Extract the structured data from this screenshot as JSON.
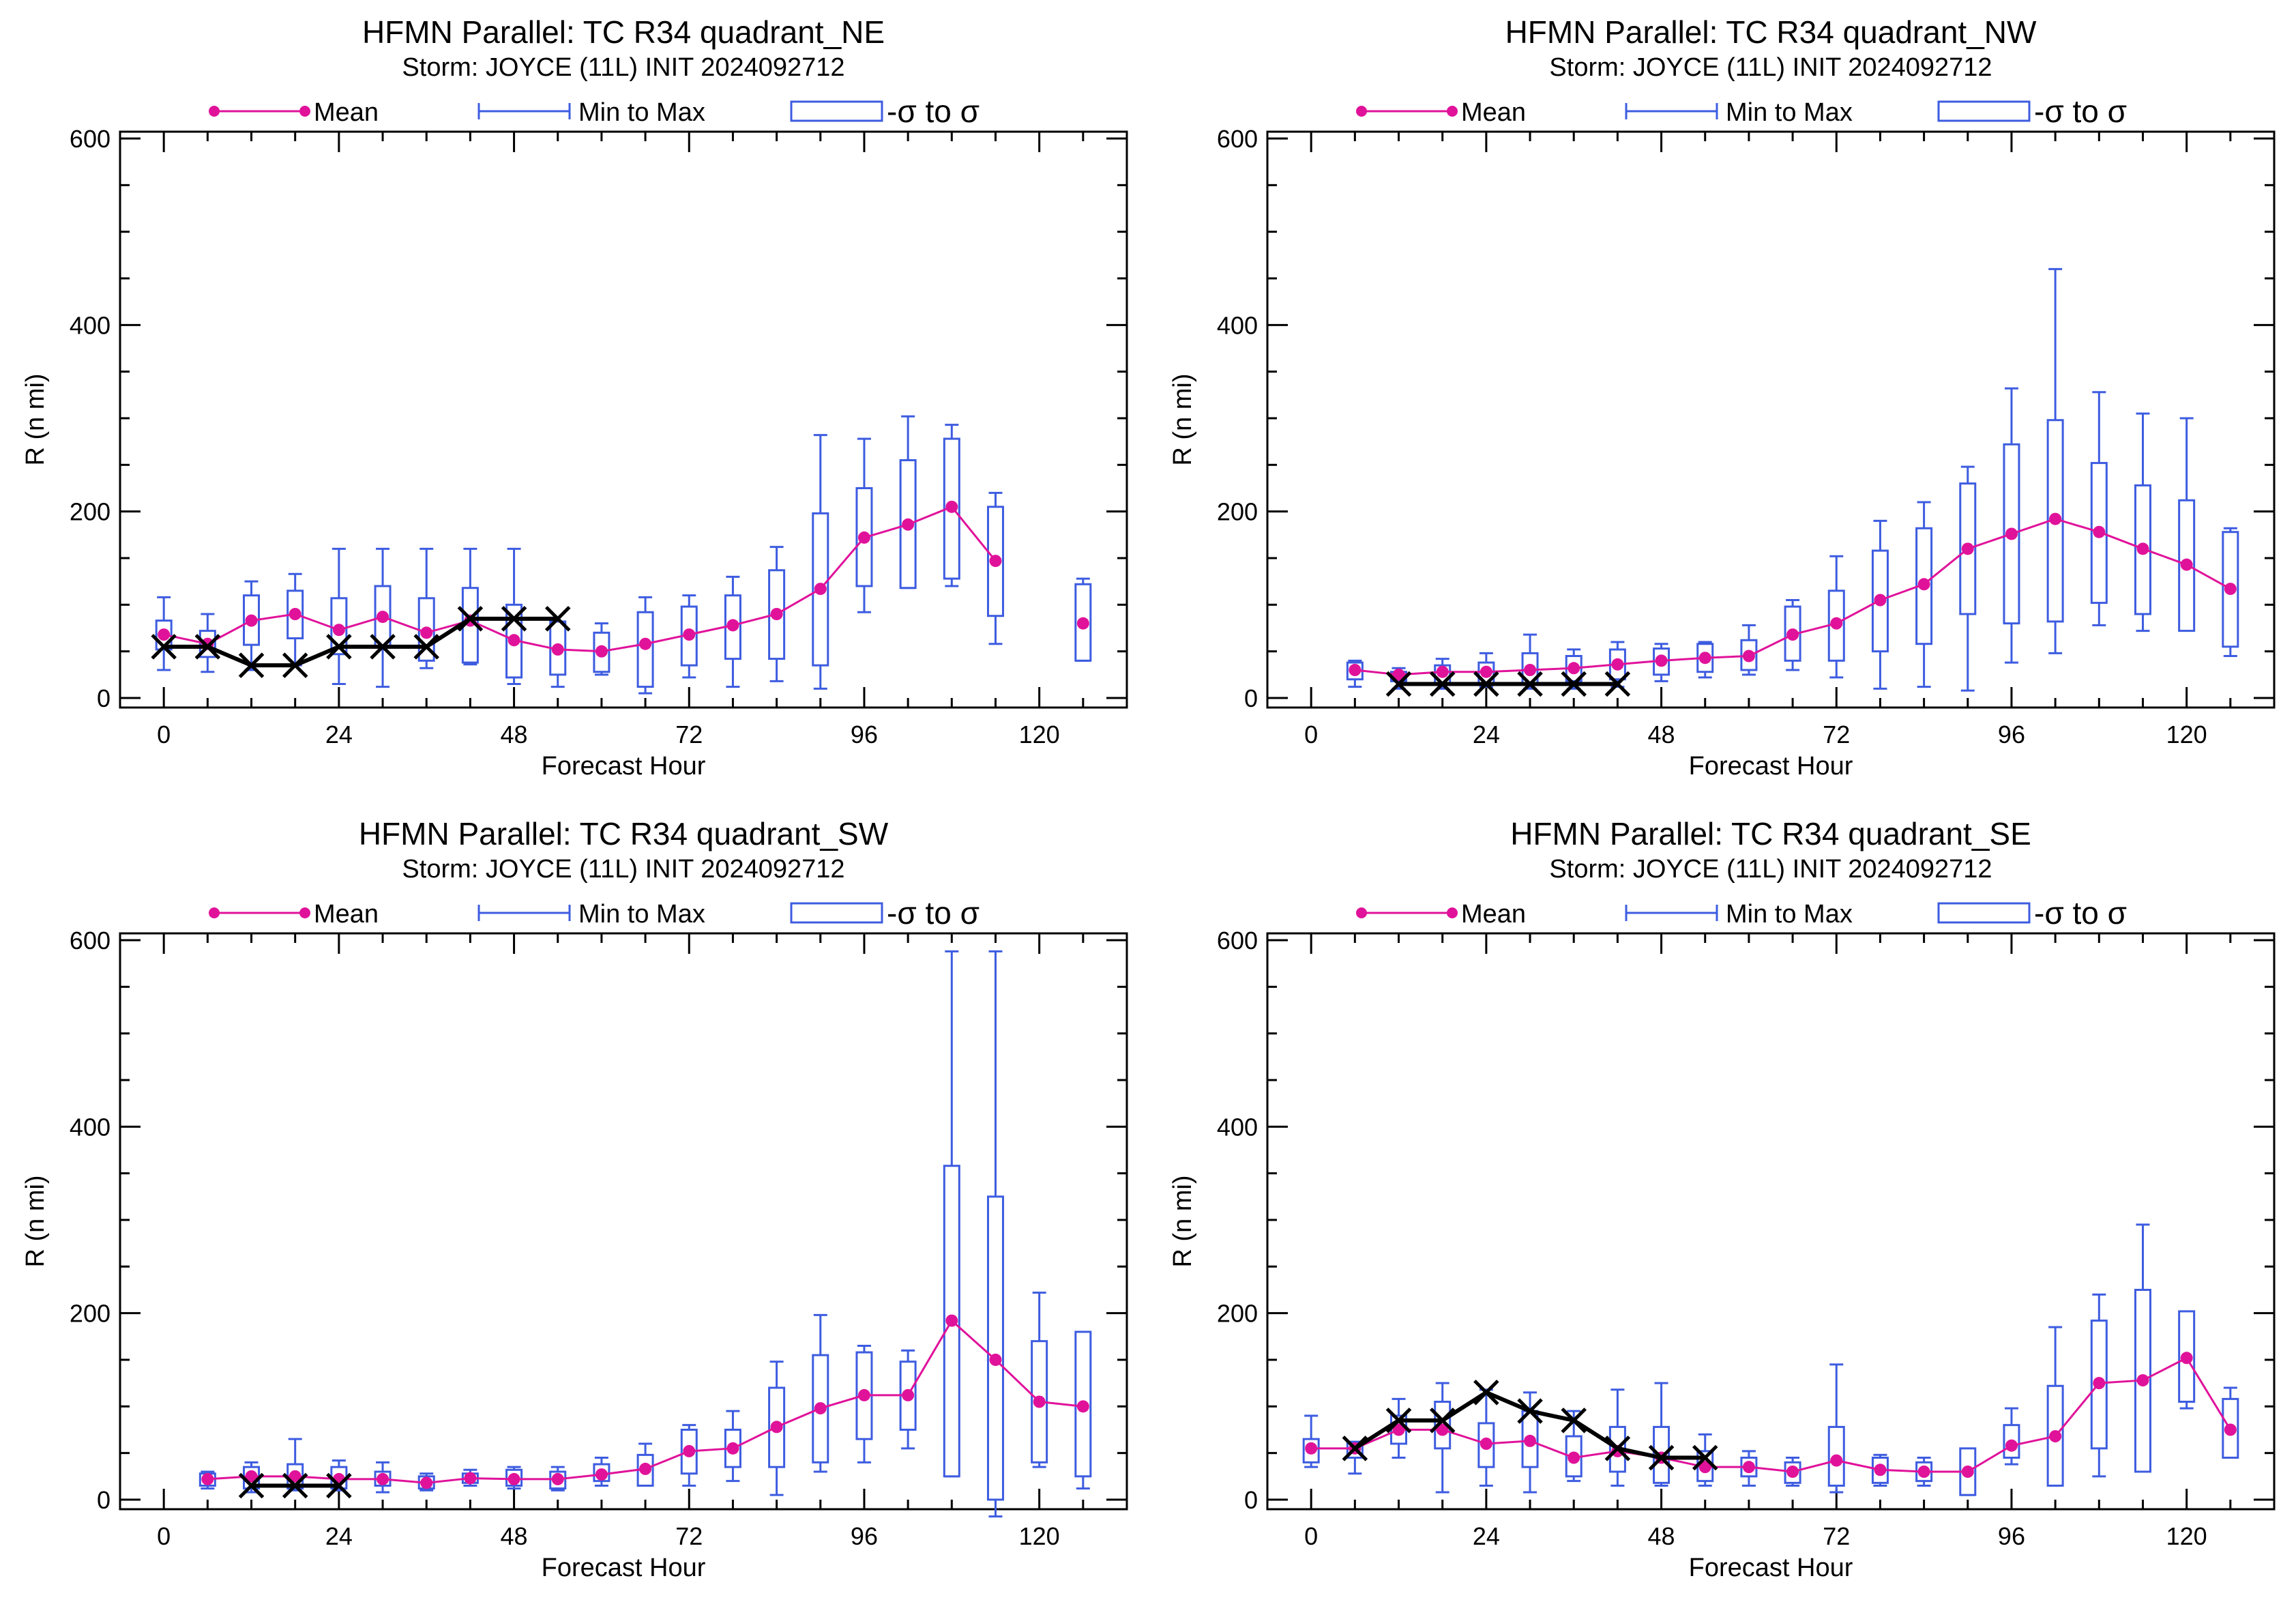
{
  "colors": {
    "mean": "#e0129a",
    "minmax": "#3d5ce0",
    "box": "#3d5ce0",
    "obs": "#000000",
    "axis": "#000000"
  },
  "legend": {
    "mean": "Mean",
    "minmax": "Min to Max",
    "sigma": "-σ to σ"
  },
  "chart_data": [
    {
      "type": "box",
      "title": "HFMN Parallel: TC  R34 quadrant_NE",
      "subtitle": "Storm: JOYCE (11L) INIT 2024092712",
      "xlabel": "Forecast Hour",
      "ylabel": "R (n mi)",
      "xlim": [
        -6,
        132
      ],
      "ylim": [
        0,
        600
      ],
      "xticks": [
        0,
        24,
        48,
        72,
        96,
        120
      ],
      "yticks": [
        0,
        200,
        400,
        600
      ],
      "x": [
        0,
        6,
        12,
        18,
        24,
        30,
        36,
        42,
        48,
        54,
        60,
        66,
        72,
        78,
        84,
        90,
        96,
        102,
        108,
        114,
        120,
        126
      ],
      "mean": [
        68,
        58,
        83,
        90,
        73,
        87,
        70,
        83,
        62,
        52,
        50,
        58,
        68,
        78,
        90,
        117,
        172,
        186,
        205,
        147,
        null,
        80
      ],
      "min": [
        30,
        28,
        30,
        35,
        15,
        12,
        32,
        36,
        15,
        12,
        25,
        5,
        22,
        12,
        18,
        10,
        92,
        118,
        120,
        58,
        null,
        40
      ],
      "max": [
        108,
        90,
        125,
        133,
        160,
        160,
        160,
        160,
        160,
        80,
        80,
        108,
        110,
        130,
        162,
        282,
        278,
        302,
        293,
        220,
        null,
        128
      ],
      "box_low": [
        52,
        44,
        57,
        64,
        47,
        54,
        40,
        38,
        22,
        25,
        28,
        12,
        35,
        42,
        42,
        35,
        120,
        118,
        128,
        88,
        null,
        40
      ],
      "box_high": [
        83,
        72,
        110,
        115,
        107,
        120,
        107,
        118,
        100,
        82,
        70,
        92,
        98,
        110,
        137,
        198,
        225,
        255,
        278,
        205,
        null,
        122
      ],
      "obs_x": [
        0,
        6,
        12,
        18,
        24,
        30,
        36,
        42,
        48,
        54
      ],
      "obs": [
        55,
        55,
        35,
        35,
        55,
        55,
        55,
        85,
        85,
        85
      ]
    },
    {
      "type": "box",
      "title": "HFMN Parallel: TC  R34 quadrant_NW",
      "subtitle": "Storm: JOYCE (11L) INIT 2024092712",
      "xlabel": "Forecast Hour",
      "ylabel": "R (n mi)",
      "xlim": [
        -6,
        132
      ],
      "ylim": [
        0,
        600
      ],
      "xticks": [
        0,
        24,
        48,
        72,
        96,
        120
      ],
      "yticks": [
        0,
        200,
        400,
        600
      ],
      "x": [
        6,
        12,
        18,
        24,
        30,
        36,
        42,
        48,
        54,
        60,
        66,
        72,
        78,
        84,
        90,
        96,
        102,
        108,
        114,
        120,
        126
      ],
      "mean": [
        30,
        25,
        28,
        28,
        30,
        32,
        36,
        40,
        43,
        45,
        68,
        80,
        105,
        122,
        160,
        176,
        192,
        178,
        160,
        143,
        117
      ],
      "min": [
        12,
        10,
        10,
        12,
        10,
        10,
        12,
        18,
        22,
        25,
        30,
        22,
        10,
        12,
        8,
        38,
        48,
        78,
        72,
        80,
        45
      ],
      "max": [
        40,
        32,
        42,
        48,
        68,
        52,
        60,
        58,
        60,
        78,
        105,
        152,
        190,
        210,
        248,
        332,
        460,
        328,
        305,
        300,
        182
      ],
      "box_low": [
        20,
        18,
        15,
        15,
        15,
        18,
        20,
        25,
        28,
        30,
        40,
        40,
        50,
        58,
        90,
        80,
        82,
        102,
        90,
        72,
        55
      ],
      "box_high": [
        38,
        28,
        35,
        38,
        48,
        45,
        52,
        53,
        58,
        62,
        98,
        115,
        158,
        182,
        230,
        272,
        298,
        252,
        228,
        212,
        178
      ],
      "obs_x": [
        12,
        18,
        24,
        30,
        36,
        42
      ],
      "obs": [
        15,
        15,
        15,
        15,
        15,
        15
      ]
    },
    {
      "type": "box",
      "title": "HFMN Parallel: TC  R34 quadrant_SW",
      "subtitle": "Storm: JOYCE (11L) INIT 2024092712",
      "xlabel": "Forecast Hour",
      "ylabel": "R (n mi)",
      "xlim": [
        -6,
        132
      ],
      "ylim": [
        0,
        600
      ],
      "xticks": [
        0,
        24,
        48,
        72,
        96,
        120
      ],
      "yticks": [
        0,
        200,
        400,
        600
      ],
      "x": [
        6,
        12,
        18,
        24,
        30,
        36,
        42,
        48,
        54,
        60,
        66,
        72,
        78,
        84,
        90,
        96,
        102,
        108,
        114,
        120,
        126
      ],
      "mean": [
        22,
        25,
        25,
        22,
        22,
        18,
        23,
        22,
        22,
        27,
        33,
        52,
        55,
        78,
        98,
        112,
        112,
        192,
        150,
        105,
        100
      ],
      "min": [
        12,
        8,
        10,
        10,
        8,
        10,
        15,
        12,
        10,
        15,
        15,
        15,
        20,
        5,
        30,
        40,
        55,
        25,
        -18,
        35,
        12
      ],
      "max": [
        30,
        40,
        65,
        42,
        40,
        28,
        32,
        35,
        35,
        45,
        60,
        80,
        95,
        148,
        198,
        165,
        160,
        588,
        588,
        222,
        148
      ],
      "box_low": [
        15,
        12,
        12,
        12,
        15,
        12,
        18,
        15,
        12,
        20,
        15,
        28,
        35,
        35,
        40,
        65,
        75,
        25,
        0,
        40,
        25
      ],
      "box_high": [
        28,
        35,
        38,
        35,
        30,
        25,
        28,
        32,
        30,
        38,
        48,
        75,
        75,
        120,
        155,
        158,
        148,
        358,
        325,
        170,
        180
      ],
      "obs_x": [
        12,
        18,
        24
      ],
      "obs": [
        15,
        15,
        15
      ]
    },
    {
      "type": "box",
      "title": "HFMN Parallel: TC  R34 quadrant_SE",
      "subtitle": "Storm: JOYCE (11L) INIT 2024092712",
      "xlabel": "Forecast Hour",
      "ylabel": "R (n mi)",
      "xlim": [
        -6,
        132
      ],
      "ylim": [
        0,
        600
      ],
      "xticks": [
        0,
        24,
        48,
        72,
        96,
        120
      ],
      "yticks": [
        0,
        200,
        400,
        600
      ],
      "x": [
        0,
        6,
        12,
        18,
        24,
        30,
        36,
        42,
        48,
        54,
        60,
        66,
        72,
        78,
        84,
        90,
        96,
        102,
        108,
        114,
        120,
        126
      ],
      "mean": [
        55,
        55,
        75,
        75,
        60,
        63,
        45,
        52,
        45,
        35,
        35,
        30,
        42,
        32,
        30,
        30,
        58,
        68,
        125,
        128,
        152,
        75
      ],
      "min": [
        35,
        28,
        45,
        8,
        15,
        8,
        20,
        15,
        15,
        15,
        15,
        15,
        8,
        15,
        15,
        5,
        38,
        15,
        25,
        32,
        98,
        45
      ],
      "max": [
        90,
        62,
        108,
        125,
        118,
        115,
        95,
        118,
        125,
        70,
        52,
        45,
        145,
        48,
        45,
        52,
        98,
        185,
        220,
        295,
        200,
        120
      ],
      "box_low": [
        40,
        45,
        60,
        55,
        35,
        35,
        25,
        30,
        18,
        20,
        25,
        18,
        15,
        18,
        20,
        5,
        45,
        15,
        55,
        30,
        105,
        45
      ],
      "box_high": [
        65,
        62,
        90,
        105,
        82,
        95,
        68,
        78,
        78,
        52,
        45,
        40,
        78,
        45,
        40,
        55,
        80,
        122,
        192,
        225,
        202,
        108
      ],
      "obs_x": [
        6,
        12,
        18,
        24,
        30,
        36,
        42,
        48,
        54
      ],
      "obs": [
        55,
        85,
        85,
        115,
        95,
        85,
        55,
        45,
        45
      ]
    }
  ]
}
